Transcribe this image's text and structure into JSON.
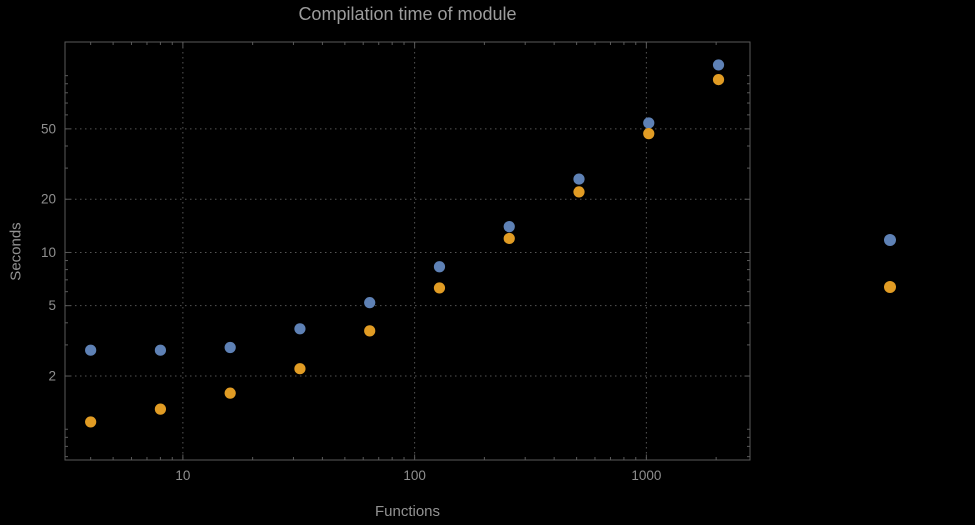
{
  "chart_data": {
    "type": "scatter",
    "title": "Compilation time of module",
    "xlabel": "Functions",
    "ylabel": "Seconds",
    "xscale": "log",
    "yscale": "log",
    "xlim": [
      3.1,
      2800
    ],
    "ylim": [
      0.67,
      155
    ],
    "x_ticks": [
      10,
      100,
      1000
    ],
    "y_ticks": [
      2,
      5,
      10,
      20,
      50
    ],
    "grid": "dotted",
    "legend_position": "right-outside",
    "x": [
      4,
      8,
      16,
      32,
      64,
      128,
      256,
      512,
      1024,
      2048
    ],
    "series": [
      {
        "color": "#5e81b5",
        "values": [
          2.8,
          2.8,
          2.9,
          3.7,
          5.2,
          8.3,
          14,
          26,
          54,
          115
        ]
      },
      {
        "color": "#e19c24",
        "values": [
          1.1,
          1.3,
          1.6,
          2.2,
          3.6,
          6.3,
          12,
          22,
          47,
          95
        ]
      }
    ],
    "colors": {
      "background": "#000000",
      "frame": "#5a5a5a",
      "grid": "#555555",
      "text": "#8f8f8f"
    }
  }
}
